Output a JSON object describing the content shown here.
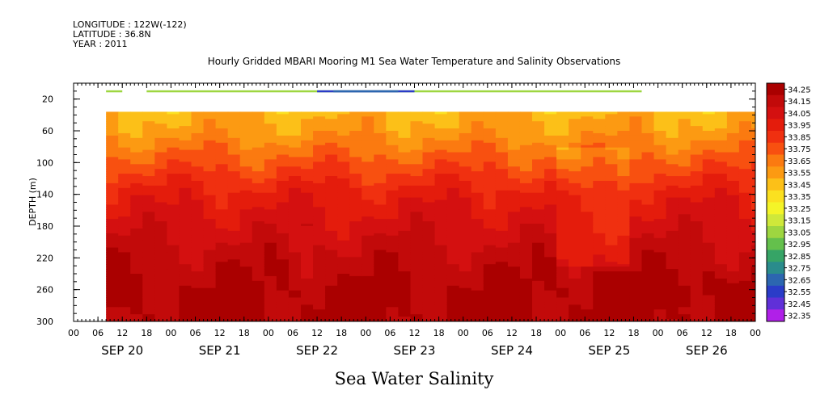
{
  "header": {
    "longitude": "LONGITUDE : 122W(-122)",
    "latitude": "LATITUDE : 36.8N",
    "year": "YEAR : 2011"
  },
  "chart_data": {
    "type": "heatmap",
    "title": "Hourly Gridded MBARI Mooring M1 Sea Water Temperature and Salinity Observations",
    "xlabel": "Sea Water Salinity",
    "ylabel": "DEPTH (m)",
    "x_hour_ticks": [
      "00",
      "06",
      "12",
      "18",
      "00",
      "06",
      "12",
      "18",
      "00",
      "06",
      "12",
      "18",
      "00",
      "06",
      "12",
      "18",
      "00",
      "06",
      "12",
      "18",
      "00",
      "06",
      "12",
      "18",
      "00",
      "06",
      "12",
      "18",
      "00"
    ],
    "x_day_labels": [
      "SEP 20",
      "SEP 21",
      "SEP 22",
      "SEP 23",
      "SEP 24",
      "SEP 25",
      "SEP 26"
    ],
    "xlim": [
      "2011-09-20T00:00",
      "2011-09-27T00:00"
    ],
    "y_ticks": [
      20,
      60,
      100,
      140,
      180,
      220,
      260,
      300
    ],
    "ylim": [
      300,
      0
    ],
    "colorbar_levels": [
      "34.25",
      "34.15",
      "34.05",
      "33.95",
      "33.85",
      "33.75",
      "33.65",
      "33.55",
      "33.45",
      "33.35",
      "33.25",
      "33.15",
      "33.05",
      "32.95",
      "32.85",
      "32.75",
      "32.65",
      "32.55",
      "32.45",
      "32.35"
    ],
    "colorbar_colors": [
      "#aa0000",
      "#c20a0a",
      "#d41010",
      "#e41c0c",
      "#f03010",
      "#f85010",
      "#fb7a10",
      "#fc9a12",
      "#fcc018",
      "#fbe020",
      "#f4f428",
      "#cfe83a",
      "#9ed640",
      "#64c04c",
      "#36a466",
      "#2a8c8c",
      "#2c66b0",
      "#2a3cc8",
      "#6030d8",
      "#b020e8"
    ],
    "depth_profile": [
      {
        "depth": 10,
        "salinity": 33.3
      },
      {
        "depth": 40,
        "salinity": 33.5
      },
      {
        "depth": 60,
        "salinity": 33.55
      },
      {
        "depth": 80,
        "salinity": 33.65
      },
      {
        "depth": 100,
        "salinity": 33.75
      },
      {
        "depth": 120,
        "salinity": 33.85
      },
      {
        "depth": 140,
        "salinity": 33.95
      },
      {
        "depth": 160,
        "salinity": 34.0
      },
      {
        "depth": 180,
        "salinity": 34.05
      },
      {
        "depth": 200,
        "salinity": 34.1
      },
      {
        "depth": 220,
        "salinity": 34.15
      },
      {
        "depth": 240,
        "salinity": 34.18
      },
      {
        "depth": 260,
        "salinity": 34.22
      },
      {
        "depth": 280,
        "salinity": 34.22
      },
      {
        "depth": 300,
        "salinity": 34.23
      }
    ]
  }
}
